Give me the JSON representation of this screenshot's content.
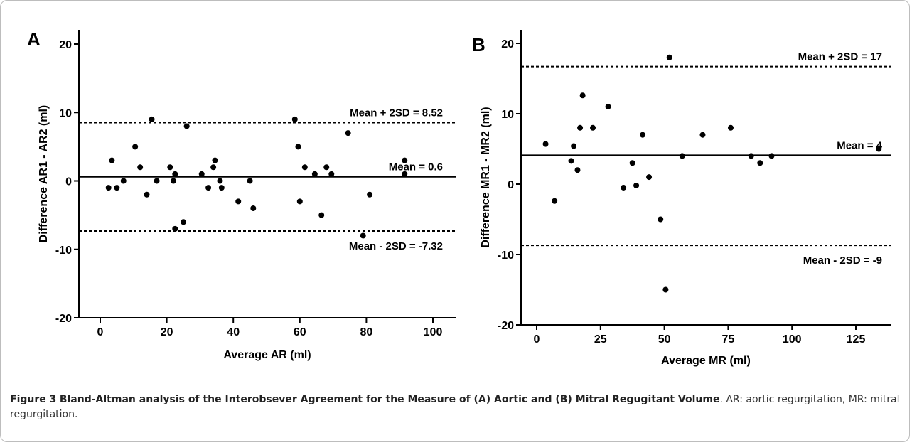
{
  "caption": {
    "label": "Figure 3",
    "title": "Bland-Altman analysis of the Interobsever Agreement for the Measure of (A) Aortic and (B) Mitral Regugitant Volume",
    "rest": ". AR: aortic regurgitation, MR: mitral regurgitation."
  },
  "chart_data": [
    {
      "type": "scatter",
      "panel": "A",
      "xlabel": "Average AR (ml)",
      "ylabel": "Difference AR1 - AR2 (ml)",
      "xlim": [
        -8,
        105
      ],
      "ylim": [
        -20,
        22
      ],
      "xticks": [
        0,
        20,
        40,
        60,
        80,
        100
      ],
      "yticks": [
        -20,
        -10,
        0,
        10,
        20
      ],
      "grid": false,
      "reference_lines": [
        {
          "label": "Mean + 2SD = 8.52",
          "y": 8.52,
          "style": "dashed"
        },
        {
          "label": "Mean = 0.6",
          "y": 0.6,
          "style": "solid"
        },
        {
          "label": "Mean - 2SD = -7.32",
          "y": -7.32,
          "style": "dashed"
        }
      ],
      "points": [
        [
          2.5,
          -1
        ],
        [
          3.5,
          3
        ],
        [
          5,
          -1
        ],
        [
          7,
          0
        ],
        [
          10.5,
          5
        ],
        [
          12,
          2
        ],
        [
          14,
          -2
        ],
        [
          15.5,
          9
        ],
        [
          17,
          0
        ],
        [
          21,
          2
        ],
        [
          22,
          0
        ],
        [
          22.5,
          1
        ],
        [
          22.5,
          -7
        ],
        [
          25,
          -6
        ],
        [
          26,
          8
        ],
        [
          30.5,
          1
        ],
        [
          32.5,
          -1
        ],
        [
          34,
          2
        ],
        [
          34.5,
          3
        ],
        [
          36,
          0
        ],
        [
          36.5,
          -1
        ],
        [
          41.5,
          -3
        ],
        [
          45,
          0
        ],
        [
          46,
          -4
        ],
        [
          58.5,
          9
        ],
        [
          59.5,
          5
        ],
        [
          60,
          -3
        ],
        [
          61.5,
          2
        ],
        [
          64.5,
          1
        ],
        [
          66.5,
          -5
        ],
        [
          68,
          2
        ],
        [
          69.5,
          1
        ],
        [
          74.5,
          7
        ],
        [
          79,
          -8
        ],
        [
          81,
          -2
        ],
        [
          91.5,
          3
        ],
        [
          91.5,
          1
        ]
      ]
    },
    {
      "type": "scatter",
      "panel": "B",
      "xlabel": "Average MR (ml)",
      "ylabel": "Difference MR1 - MR2 (ml)",
      "xlim": [
        -13,
        145
      ],
      "ylim": [
        -20,
        21
      ],
      "xticks": [
        0,
        25,
        50,
        75,
        100,
        125
      ],
      "yticks": [
        -20,
        -10,
        0,
        10,
        20
      ],
      "grid": false,
      "reference_lines": [
        {
          "label": "Mean + 2SD = 17",
          "y": 16.7,
          "style": "dashed"
        },
        {
          "label": "Mean = 4",
          "y": 4.1,
          "style": "solid"
        },
        {
          "label": "Mean - 2SD = -9",
          "y": -8.7,
          "style": "dashed"
        }
      ],
      "points": [
        [
          3.5,
          5.7
        ],
        [
          7,
          -2.4
        ],
        [
          13.5,
          3.3
        ],
        [
          14.5,
          5.4
        ],
        [
          16,
          2
        ],
        [
          17,
          8
        ],
        [
          18,
          12.6
        ],
        [
          22,
          8
        ],
        [
          28,
          11
        ],
        [
          34,
          -0.5
        ],
        [
          37.5,
          3
        ],
        [
          39,
          -0.2
        ],
        [
          41.5,
          7
        ],
        [
          44,
          1
        ],
        [
          48.5,
          -5
        ],
        [
          50.5,
          -15
        ],
        [
          52,
          18
        ],
        [
          57,
          4
        ],
        [
          65,
          7
        ],
        [
          76,
          8
        ],
        [
          84,
          4
        ],
        [
          87.5,
          3
        ],
        [
          92,
          4
        ],
        [
          134,
          5
        ]
      ]
    }
  ]
}
